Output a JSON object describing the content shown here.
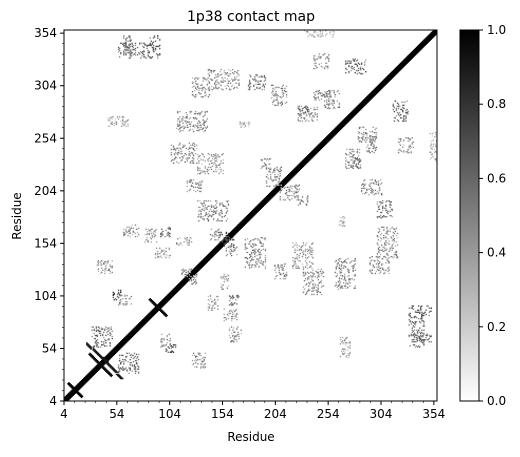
{
  "chart_data": {
    "type": "heatmap",
    "title": "1p38 contact map",
    "xlabel": "Residue",
    "ylabel": "Residue",
    "xlim": [
      4,
      357
    ],
    "ylim": [
      4,
      357
    ],
    "ticks": [
      4,
      54,
      104,
      154,
      204,
      254,
      304,
      354
    ],
    "tick_labels": [
      "4",
      "54",
      "104",
      "154",
      "204",
      "254",
      "304",
      "354"
    ],
    "colorbar": {
      "range": [
        0.0,
        1.0
      ],
      "ticks": [
        0.0,
        0.2,
        0.4,
        0.6,
        0.8,
        1.0
      ],
      "tick_labels": [
        "0.0",
        "0.2",
        "0.4",
        "0.6",
        "0.8",
        "1.0"
      ],
      "colormap": "gray_r",
      "low_color": "#ffffff",
      "high_color": "#000000"
    },
    "symmetric": true,
    "contact_clusters": [
      {
        "shape": "diagonal",
        "from": 4,
        "to": 357,
        "value": 1.0
      },
      {
        "shape": "antidiagonal",
        "x": [
          8,
          20
        ],
        "y": [
          8,
          20
        ],
        "value": 1.0
      },
      {
        "shape": "antidiagonal",
        "x": [
          28,
          48
        ],
        "y": [
          28,
          48
        ],
        "value": 0.95
      },
      {
        "shape": "antidiagonal",
        "x": [
          40,
          58
        ],
        "y": [
          25,
          45
        ],
        "value": 0.9
      },
      {
        "shape": "antidiagonal",
        "x": [
          85,
          100
        ],
        "y": [
          85,
          100
        ],
        "value": 0.95
      },
      {
        "shape": "block",
        "x": [
          55,
          75
        ],
        "y": [
          30,
          50
        ],
        "value": 0.7
      },
      {
        "shape": "block",
        "x": [
          100,
          110
        ],
        "y": [
          50,
          58
        ],
        "value": 0.85
      },
      {
        "shape": "block",
        "x": [
          95,
          105
        ],
        "y": [
          55,
          68
        ],
        "value": 0.6
      },
      {
        "shape": "block",
        "x": [
          140,
          150
        ],
        "y": [
          90,
          105
        ],
        "value": 0.5
      },
      {
        "shape": "block",
        "x": [
          160,
          172
        ],
        "y": [
          60,
          75
        ],
        "value": 0.55
      },
      {
        "shape": "block",
        "x": [
          160,
          170
        ],
        "y": [
          95,
          105
        ],
        "value": 0.7
      },
      {
        "shape": "block",
        "x": [
          150,
          160
        ],
        "y": [
          155,
          165
        ],
        "value": 0.9
      },
      {
        "shape": "block",
        "x": [
          175,
          195
        ],
        "y": [
          130,
          160
        ],
        "value": 0.6
      },
      {
        "shape": "block",
        "x": [
          220,
          240
        ],
        "y": [
          130,
          155
        ],
        "value": 0.55
      },
      {
        "shape": "block",
        "x": [
          230,
          250
        ],
        "y": [
          105,
          130
        ],
        "value": 0.6
      },
      {
        "shape": "block",
        "x": [
          260,
          280
        ],
        "y": [
          110,
          140
        ],
        "value": 0.6
      },
      {
        "shape": "block",
        "x": [
          265,
          275
        ],
        "y": [
          45,
          65
        ],
        "value": 0.5
      },
      {
        "shape": "block",
        "x": [
          330,
          345
        ],
        "y": [
          55,
          85
        ],
        "value": 0.7
      },
      {
        "shape": "block",
        "x": [
          300,
          320
        ],
        "y": [
          140,
          170
        ],
        "value": 0.55
      },
      {
        "shape": "block",
        "x": [
          300,
          315
        ],
        "y": [
          178,
          195
        ],
        "value": 0.65
      },
      {
        "shape": "block",
        "x": [
          282,
          300
        ],
        "y": [
          250,
          265
        ],
        "value": 0.6
      },
      {
        "shape": "block",
        "x": [
          270,
          285
        ],
        "y": [
          225,
          245
        ],
        "value": 0.6
      },
      {
        "shape": "block",
        "x": [
          315,
          330
        ],
        "y": [
          270,
          290
        ],
        "value": 0.7
      },
      {
        "shape": "block",
        "x": [
          320,
          335
        ],
        "y": [
          240,
          255
        ],
        "value": 0.55
      },
      {
        "shape": "block",
        "x": [
          350,
          357
        ],
        "y": [
          230,
          260
        ],
        "value": 0.45
      },
      {
        "shape": "block",
        "x": [
          60,
          70
        ],
        "y": [
          333,
          352
        ],
        "value": 0.7
      },
      {
        "shape": "block",
        "x": [
          85,
          95
        ],
        "y": [
          330,
          352
        ],
        "value": 0.75
      },
      {
        "shape": "block",
        "x": [
          125,
          142
        ],
        "y": [
          293,
          312
        ],
        "value": 0.6
      },
      {
        "shape": "block",
        "x": [
          200,
          215
        ],
        "y": [
          285,
          305
        ],
        "value": 0.6
      },
      {
        "shape": "block",
        "x": [
          120,
          135
        ],
        "y": [
          203,
          215
        ],
        "value": 0.6
      },
      {
        "shape": "block",
        "x": [
          195,
          210
        ],
        "y": [
          208,
          228
        ],
        "value": 0.6
      },
      {
        "shape": "block",
        "x": [
          190,
          200
        ],
        "y": [
          225,
          235
        ],
        "value": 0.55
      },
      {
        "shape": "block",
        "x": [
          110,
          125
        ],
        "y": [
          152,
          160
        ],
        "value": 0.5
      },
      {
        "shape": "block",
        "x": [
          142,
          152
        ],
        "y": [
          157,
          168
        ],
        "value": 0.6
      },
      {
        "shape": "block",
        "x": [
          80,
          92
        ],
        "y": [
          155,
          168
        ],
        "value": 0.5
      },
      {
        "shape": "block",
        "x": [
          115,
          125
        ],
        "y": [
          122,
          130
        ],
        "value": 0.6
      },
      {
        "shape": "block",
        "x": [
          125,
          138
        ],
        "y": [
          35,
          50
        ],
        "value": 0.55
      },
      {
        "shape": "block",
        "x": [
          225,
          235
        ],
        "y": [
          275,
          285
        ],
        "value": 0.65
      },
      {
        "shape": "block",
        "x": [
          240,
          255
        ],
        "y": [
          290,
          300
        ],
        "value": 0.6
      },
      {
        "shape": "block",
        "x": [
          170,
          182
        ],
        "y": [
          264,
          270
        ],
        "value": 0.45
      }
    ]
  }
}
